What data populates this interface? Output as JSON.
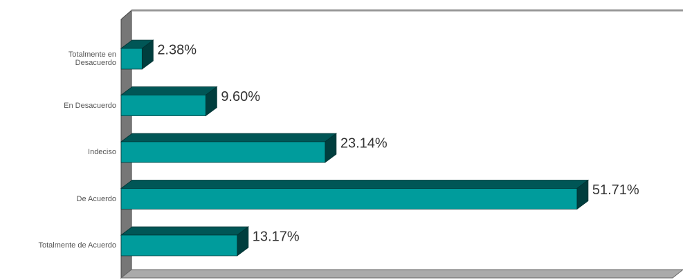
{
  "chart_data": {
    "type": "bar3d",
    "categories": [
      "Totalmente en Desacuerdo",
      "En Desacuerdo",
      "Indeciso",
      "De Acuerdo",
      "Totalmente de Acuerdo"
    ],
    "values": [
      2.38,
      9.6,
      23.14,
      51.71,
      13.17
    ],
    "value_labels": [
      "2.38%",
      "9.60%",
      "23.14%",
      "51.71%",
      "13.17%"
    ],
    "xlim": [
      0,
      62
    ],
    "color": "#009c9c"
  }
}
